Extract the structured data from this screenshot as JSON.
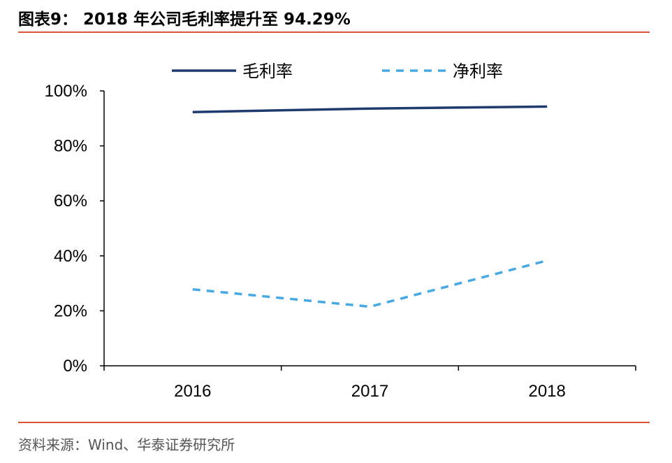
{
  "figure": {
    "label": "图表9：",
    "title": "2018 年公司毛利率提升至 94.29%"
  },
  "source": "资料来源：Wind、华泰证券研究所",
  "colors": {
    "accent_rule": "#d9533c",
    "gross_margin": "#1f3a6e",
    "net_margin": "#4aa8e0"
  },
  "chart_data": {
    "type": "line",
    "x": [
      "2016",
      "2017",
      "2018"
    ],
    "series": [
      {
        "name": "毛利率",
        "values": [
          92.3,
          93.6,
          94.29
        ],
        "style": "solid",
        "color": "#1f3a6e"
      },
      {
        "name": "净利率",
        "values": [
          27.8,
          21.5,
          38.3
        ],
        "style": "dashed",
        "color": "#4aa8e0"
      }
    ],
    "y_ticks": [
      "0%",
      "20%",
      "40%",
      "60%",
      "80%",
      "100%"
    ],
    "ylim": [
      0,
      100
    ],
    "grid": false,
    "legend_position": "top"
  }
}
